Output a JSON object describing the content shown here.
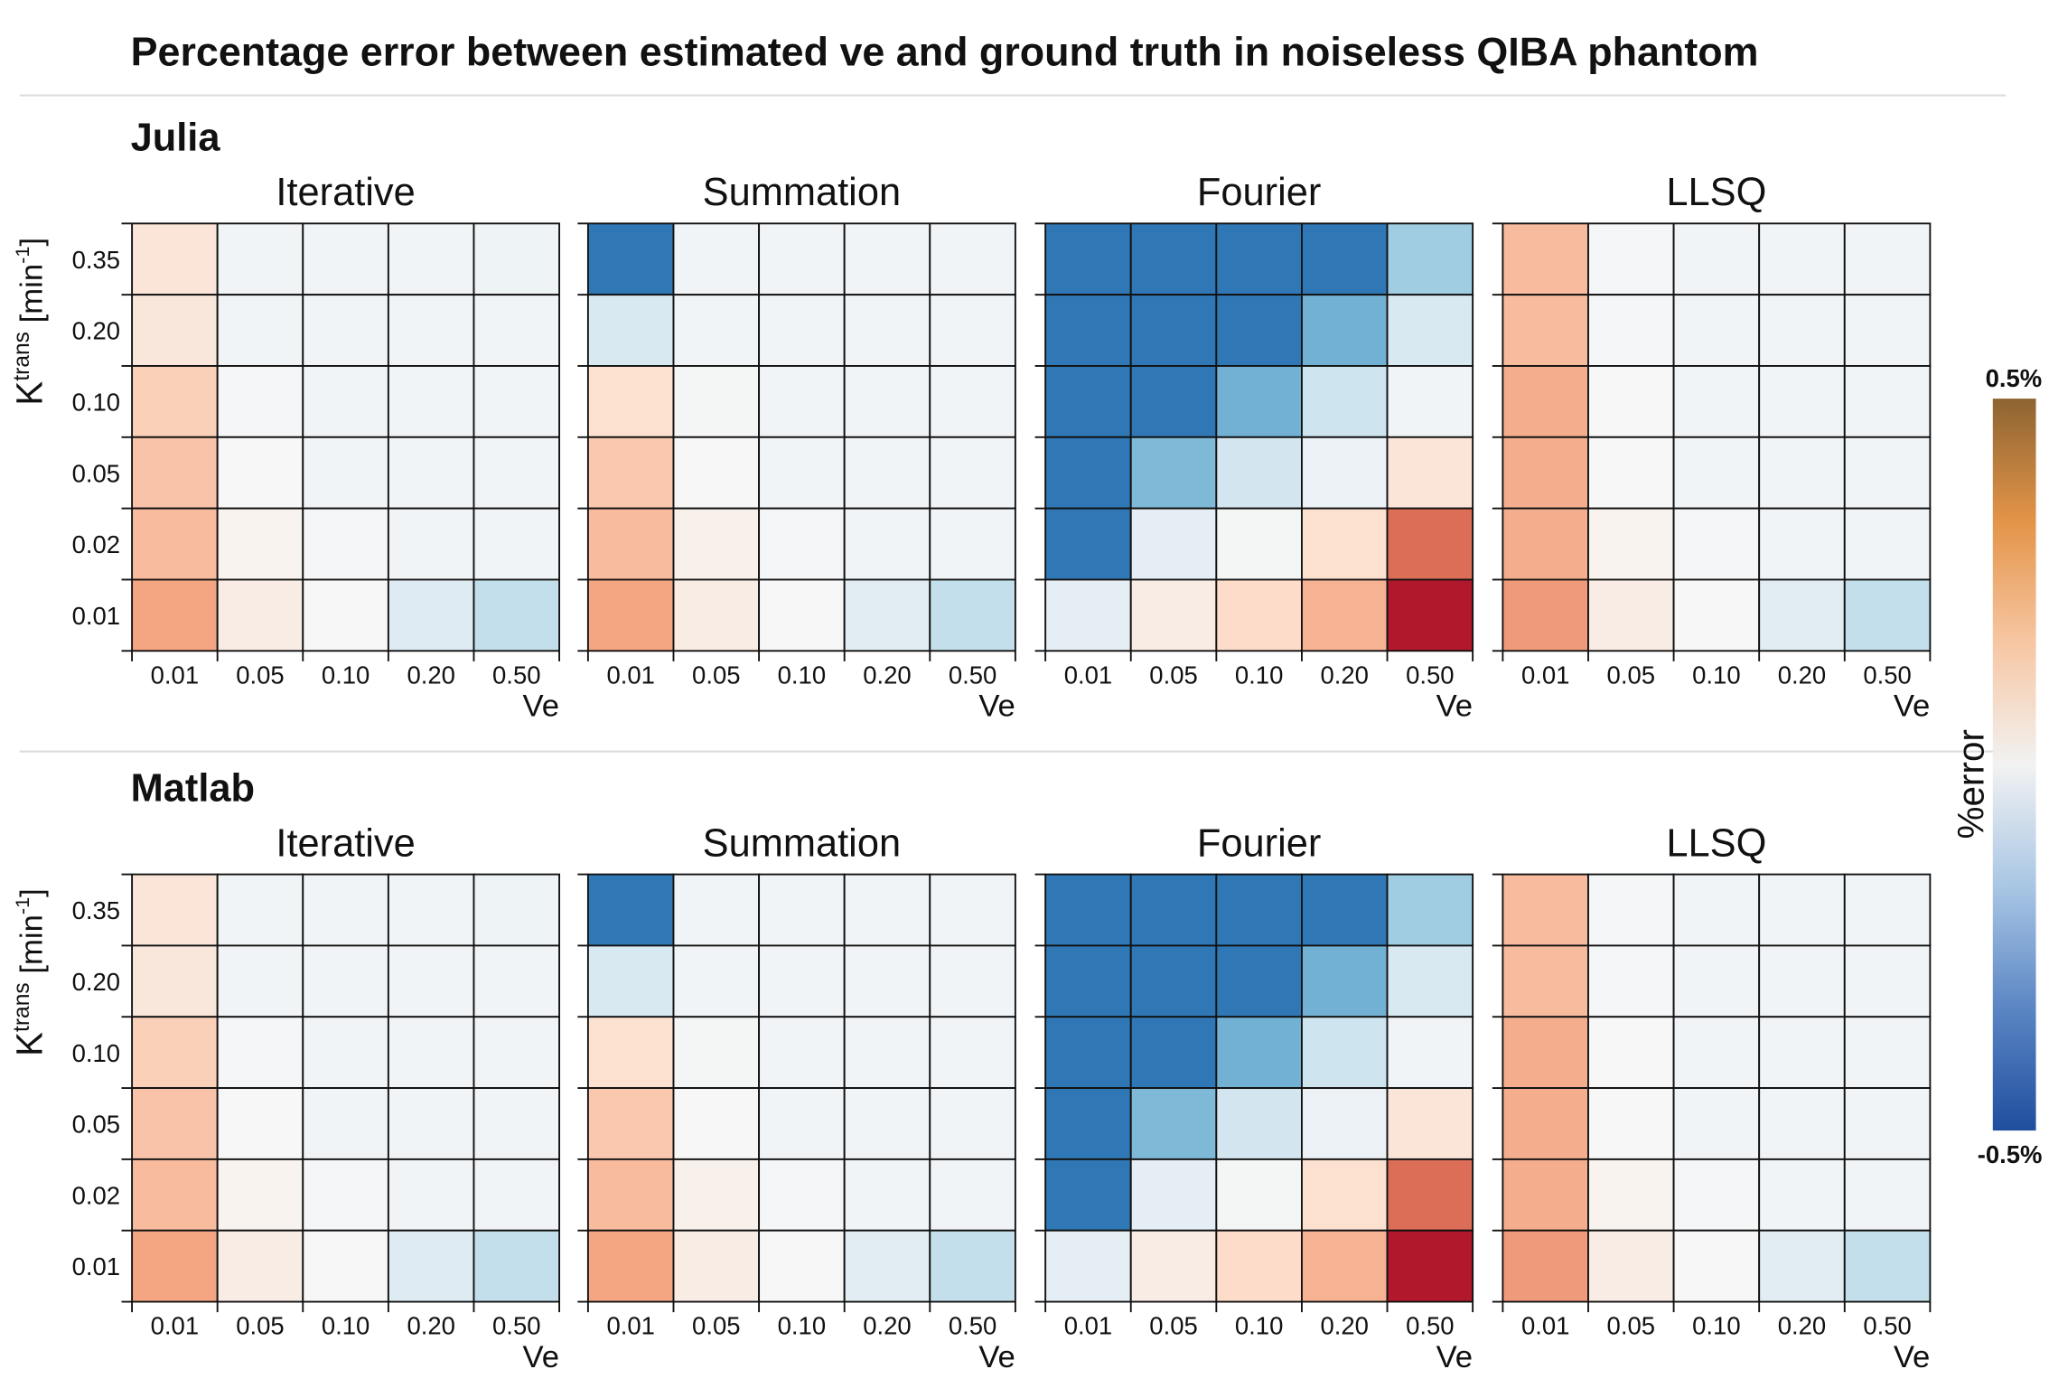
{
  "chart_data": {
    "type": "heatmap",
    "title": "Percentage error between estimated ve and ground truth in noiseless QIBA phantom",
    "xlabel": "Ve",
    "ylabel": "Ktrans [min-1]",
    "ylabel_parts": {
      "main": "K",
      "sup": "trans",
      "unit_open": " [min",
      "unit_sup": "-1",
      "unit_close": "]"
    },
    "x_ticks": [
      "0.01",
      "0.05",
      "0.10",
      "0.20",
      "0.50"
    ],
    "y_ticks": [
      "0.35",
      "0.20",
      "0.10",
      "0.05",
      "0.02",
      "0.01"
    ],
    "colorbar": {
      "label": "%error",
      "max_label": "0.5%",
      "min_label": "-0.5%",
      "range": [
        -0.5,
        0.5
      ]
    },
    "colormap": [
      "#2166ac",
      "#4393c3",
      "#92c5de",
      "#d1e5f0",
      "#f7f7f7",
      "#fddbc7",
      "#f4a582",
      "#d6604d",
      "#b2182b"
    ],
    "colorbar_gradient": [
      "#1f4e9e",
      "#5b86c4",
      "#a9c6e4",
      "#f2f2f2",
      "#f7c6a3",
      "#e39448",
      "#8d6432"
    ],
    "sections": [
      {
        "name": "Julia",
        "panels": [
          {
            "title": "Iterative",
            "values": [
              [
                0.08,
                -0.02,
                -0.02,
                -0.02,
                -0.03
              ],
              [
                0.07,
                -0.02,
                -0.02,
                -0.02,
                -0.02
              ],
              [
                0.15,
                -0.005,
                -0.02,
                -0.02,
                -0.02
              ],
              [
                0.18,
                0.0,
                -0.02,
                -0.02,
                -0.02
              ],
              [
                0.2,
                0.02,
                -0.005,
                -0.02,
                -0.02
              ],
              [
                0.25,
                0.05,
                0.0,
                -0.08,
                -0.15
              ]
            ]
          },
          {
            "title": "Summation",
            "values": [
              [
                -0.45,
                -0.02,
                -0.02,
                -0.02,
                -0.02
              ],
              [
                -0.1,
                -0.02,
                -0.02,
                -0.02,
                -0.02
              ],
              [
                0.1,
                -0.01,
                -0.02,
                -0.02,
                -0.02
              ],
              [
                0.17,
                0.0,
                -0.02,
                -0.02,
                -0.02
              ],
              [
                0.2,
                0.03,
                -0.005,
                -0.02,
                -0.02
              ],
              [
                0.25,
                0.05,
                0.0,
                -0.07,
                -0.15
              ]
            ]
          },
          {
            "title": "Fourier",
            "values": [
              [
                -0.45,
                -0.45,
                -0.45,
                -0.45,
                -0.22
              ],
              [
                -0.45,
                -0.45,
                -0.45,
                -0.3,
                -0.1
              ],
              [
                -0.45,
                -0.45,
                -0.3,
                -0.13,
                -0.02
              ],
              [
                -0.45,
                -0.28,
                -0.12,
                -0.04,
                0.08
              ],
              [
                -0.45,
                -0.06,
                -0.01,
                0.1,
                0.35
              ],
              [
                -0.06,
                0.05,
                0.12,
                0.22,
                0.5
              ]
            ]
          },
          {
            "title": "LLSQ",
            "values": [
              [
                0.2,
                -0.005,
                -0.02,
                -0.02,
                -0.02
              ],
              [
                0.2,
                -0.005,
                -0.02,
                -0.02,
                -0.02
              ],
              [
                0.23,
                0.0,
                -0.02,
                -0.02,
                -0.02
              ],
              [
                0.23,
                0.0,
                -0.02,
                -0.02,
                -0.02
              ],
              [
                0.23,
                0.02,
                -0.005,
                -0.02,
                -0.02
              ],
              [
                0.27,
                0.05,
                0.0,
                -0.07,
                -0.15
              ]
            ]
          }
        ]
      },
      {
        "name": "Matlab",
        "panels": [
          {
            "title": "Iterative",
            "values": [
              [
                0.08,
                -0.02,
                -0.02,
                -0.02,
                -0.03
              ],
              [
                0.07,
                -0.02,
                -0.02,
                -0.02,
                -0.02
              ],
              [
                0.15,
                -0.005,
                -0.02,
                -0.02,
                -0.02
              ],
              [
                0.18,
                0.0,
                -0.02,
                -0.02,
                -0.02
              ],
              [
                0.2,
                0.02,
                -0.005,
                -0.02,
                -0.02
              ],
              [
                0.25,
                0.05,
                0.0,
                -0.08,
                -0.15
              ]
            ]
          },
          {
            "title": "Summation",
            "values": [
              [
                -0.45,
                -0.02,
                -0.02,
                -0.02,
                -0.02
              ],
              [
                -0.1,
                -0.02,
                -0.02,
                -0.02,
                -0.02
              ],
              [
                0.1,
                -0.01,
                -0.02,
                -0.02,
                -0.02
              ],
              [
                0.17,
                0.0,
                -0.02,
                -0.02,
                -0.02
              ],
              [
                0.2,
                0.03,
                -0.005,
                -0.02,
                -0.02
              ],
              [
                0.25,
                0.05,
                0.0,
                -0.07,
                -0.15
              ]
            ]
          },
          {
            "title": "Fourier",
            "values": [
              [
                -0.45,
                -0.45,
                -0.45,
                -0.45,
                -0.22
              ],
              [
                -0.45,
                -0.45,
                -0.45,
                -0.3,
                -0.1
              ],
              [
                -0.45,
                -0.45,
                -0.3,
                -0.13,
                -0.02
              ],
              [
                -0.45,
                -0.28,
                -0.12,
                -0.04,
                0.08
              ],
              [
                -0.45,
                -0.06,
                -0.01,
                0.1,
                0.35
              ],
              [
                -0.06,
                0.05,
                0.12,
                0.22,
                0.5
              ]
            ]
          },
          {
            "title": "LLSQ",
            "values": [
              [
                0.2,
                -0.005,
                -0.02,
                -0.02,
                -0.02
              ],
              [
                0.2,
                -0.005,
                -0.02,
                -0.02,
                -0.02
              ],
              [
                0.23,
                0.0,
                -0.02,
                -0.02,
                -0.02
              ],
              [
                0.23,
                0.0,
                -0.02,
                -0.02,
                -0.02
              ],
              [
                0.23,
                0.02,
                -0.005,
                -0.02,
                -0.02
              ],
              [
                0.27,
                0.05,
                0.0,
                -0.07,
                -0.15
              ]
            ]
          }
        ]
      }
    ]
  }
}
